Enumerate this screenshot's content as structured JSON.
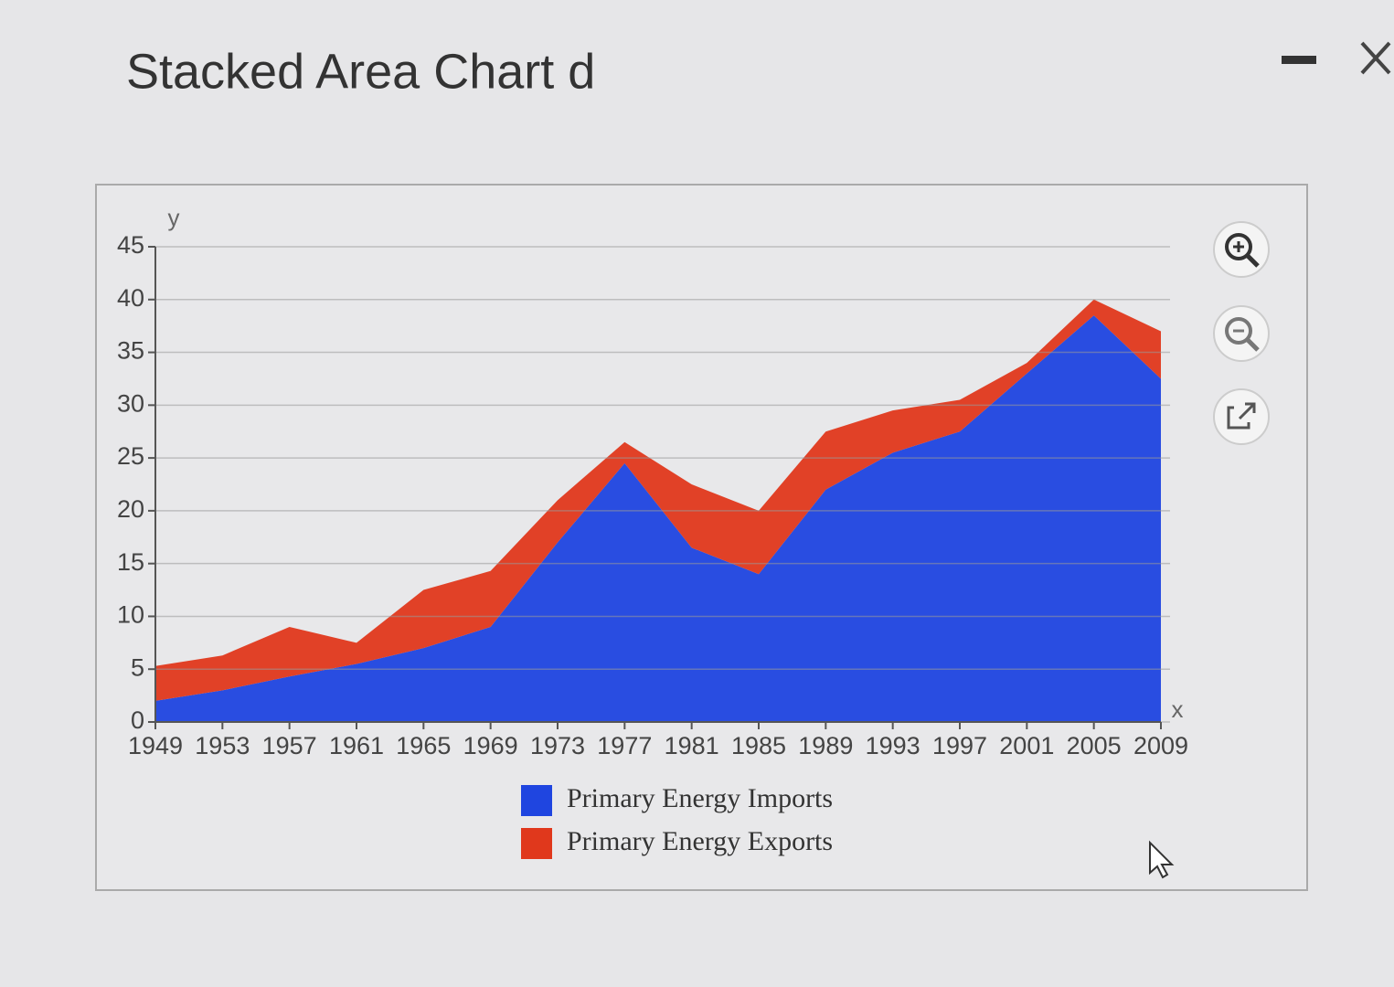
{
  "chart_data": {
    "type": "stacked-area",
    "title": "Stacked Area Chart d",
    "x_label": "x",
    "y_label": "y",
    "x": [
      1949,
      1953,
      1957,
      1961,
      1965,
      1969,
      1973,
      1977,
      1981,
      1985,
      1989,
      1993,
      1997,
      2001,
      2005,
      2009
    ],
    "series": [
      {
        "name": "Primary Energy Imports",
        "color": "#1f45e0",
        "values": [
          2,
          3,
          4.3,
          5.5,
          7,
          9,
          17,
          24.5,
          16.5,
          14,
          22,
          25.5,
          27.5,
          33,
          38.5,
          32.5
        ]
      },
      {
        "name": "Primary Energy Exports",
        "color": "#e0381c",
        "values": [
          3.3,
          3.3,
          4.7,
          2,
          5.5,
          5.3,
          4,
          2,
          6,
          6,
          5.5,
          4,
          3,
          1,
          1.5,
          4.5
        ]
      }
    ],
    "xlim": [
      1949,
      2009
    ],
    "xticks": [
      1949,
      1953,
      1957,
      1961,
      1965,
      1969,
      1973,
      1977,
      1981,
      1985,
      1989,
      1993,
      1997,
      2001,
      2005,
      2009
    ],
    "ylim": [
      0,
      45
    ],
    "yticks": [
      0,
      5,
      10,
      15,
      20,
      25,
      30,
      35,
      40,
      45
    ],
    "grid": true
  }
}
